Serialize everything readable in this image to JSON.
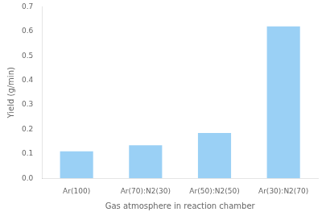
{
  "chart_data": {
    "type": "bar",
    "categories": [
      "Ar(100)",
      "Ar(70):N2(30)",
      "Ar(50):N2(50)",
      "Ar(30):N2(70)"
    ],
    "values": [
      0.11,
      0.135,
      0.185,
      0.62
    ],
    "xlabel": "Gas atmosphere in reaction chamber",
    "ylabel": "Yield (g/min)",
    "ylim": [
      0.0,
      0.7
    ],
    "yticks": [
      {
        "value": 0,
        "label": "0.0"
      },
      0.1,
      0.2,
      0.3,
      0.4,
      0.5,
      0.6,
      0.7
    ],
    "grid": false
  }
}
